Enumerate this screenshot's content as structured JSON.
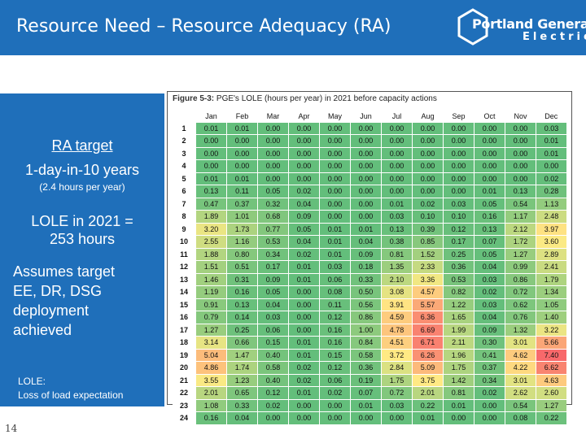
{
  "header": {
    "title": "Resource Need – Resource Adequacy (RA)"
  },
  "logo": {
    "line1": "Portland General",
    "line2": "Electric"
  },
  "left_panel": {
    "ra_target": "RA target",
    "ra_years": "1-day-in-10 years",
    "ra_hours": "(2.4 hours per year)",
    "lole_line1": "LOLE in 2021 =",
    "lole_line2": "253 hours",
    "assumes": [
      "Assumes target",
      "EE, DR, DSG",
      "deployment",
      "achieved"
    ],
    "lole_def_1": "LOLE:",
    "lole_def_2": "Loss of load expectation"
  },
  "page_number": "14",
  "figure": {
    "caption_label": "Figure 5-3:",
    "caption_text": "PGE's LOLE (hours per year) in 2021 before capacity actions"
  },
  "chart_data": {
    "type": "heatmap",
    "title": "PGE's LOLE (hours per year) in 2021 before capacity actions",
    "x": [
      "Jan",
      "Feb",
      "Mar",
      "Apr",
      "May",
      "Jun",
      "Jul",
      "Aug",
      "Sep",
      "Oct",
      "Nov",
      "Dec"
    ],
    "y": [
      "1",
      "2",
      "3",
      "4",
      "5",
      "6",
      "7",
      "8",
      "9",
      "10",
      "11",
      "12",
      "13",
      "14",
      "15",
      "16",
      "17",
      "18",
      "19",
      "20",
      "21",
      "22",
      "23",
      "24"
    ],
    "values": [
      [
        "0.01",
        "0.01",
        "0.00",
        "0.00",
        "0.00",
        "0.00",
        "0.00",
        "0.00",
        "0.00",
        "0.00",
        "0.00",
        "0.03"
      ],
      [
        "0.00",
        "0.00",
        "0.00",
        "0.00",
        "0.00",
        "0.00",
        "0.00",
        "0.00",
        "0.00",
        "0.00",
        "0.00",
        "0.01"
      ],
      [
        "0.00",
        "0.00",
        "0.00",
        "0.00",
        "0.00",
        "0.00",
        "0.00",
        "0.00",
        "0.00",
        "0.00",
        "0.00",
        "0.01"
      ],
      [
        "0.00",
        "0.00",
        "0.00",
        "0.00",
        "0.00",
        "0.00",
        "0.00",
        "0.00",
        "0.00",
        "0.00",
        "0.00",
        "0.00"
      ],
      [
        "0.01",
        "0.01",
        "0.00",
        "0.00",
        "0.00",
        "0.00",
        "0.00",
        "0.00",
        "0.00",
        "0.00",
        "0.00",
        "0.02"
      ],
      [
        "0.13",
        "0.11",
        "0.05",
        "0.02",
        "0.00",
        "0.00",
        "0.00",
        "0.00",
        "0.00",
        "0.01",
        "0.13",
        "0.28"
      ],
      [
        "0.47",
        "0.37",
        "0.32",
        "0.04",
        "0.00",
        "0.00",
        "0.01",
        "0.02",
        "0.03",
        "0.05",
        "0.54",
        "1.13"
      ],
      [
        "1.89",
        "1.01",
        "0.68",
        "0.09",
        "0.00",
        "0.00",
        "0.03",
        "0.10",
        "0.10",
        "0.16",
        "1.17",
        "2.48"
      ],
      [
        "3.20",
        "1.73",
        "0.77",
        "0.05",
        "0.01",
        "0.01",
        "0.13",
        "0.39",
        "0.12",
        "0.13",
        "2.12",
        "3.97"
      ],
      [
        "2.55",
        "1.16",
        "0.53",
        "0.04",
        "0.01",
        "0.04",
        "0.38",
        "0.85",
        "0.17",
        "0.07",
        "1.72",
        "3.60"
      ],
      [
        "1.88",
        "0.80",
        "0.34",
        "0.02",
        "0.01",
        "0.09",
        "0.81",
        "1.52",
        "0.25",
        "0.05",
        "1.27",
        "2.89"
      ],
      [
        "1.51",
        "0.51",
        "0.17",
        "0.01",
        "0.03",
        "0.18",
        "1.35",
        "2.33",
        "0.36",
        "0.04",
        "0.99",
        "2.41"
      ],
      [
        "1.46",
        "0.31",
        "0.09",
        "0.01",
        "0.06",
        "0.33",
        "2.10",
        "3.36",
        "0.53",
        "0.03",
        "0.86",
        "1.79"
      ],
      [
        "1.19",
        "0.16",
        "0.05",
        "0.00",
        "0.08",
        "0.50",
        "3.08",
        "4.57",
        "0.82",
        "0.02",
        "0.72",
        "1.34"
      ],
      [
        "0.91",
        "0.13",
        "0.04",
        "0.00",
        "0.11",
        "0.56",
        "3.91",
        "5.57",
        "1.22",
        "0.03",
        "0.62",
        "1.05"
      ],
      [
        "0.79",
        "0.14",
        "0.03",
        "0.00",
        "0.12",
        "0.86",
        "4.59",
        "6.36",
        "1.65",
        "0.04",
        "0.76",
        "1.40"
      ],
      [
        "1.27",
        "0.25",
        "0.06",
        "0.00",
        "0.16",
        "1.00",
        "4.78",
        "6.69",
        "1.99",
        "0.09",
        "1.32",
        "3.22"
      ],
      [
        "3.14",
        "0.66",
        "0.15",
        "0.01",
        "0.16",
        "0.84",
        "4.51",
        "6.71",
        "2.11",
        "0.30",
        "3.01",
        "5.66"
      ],
      [
        "5.04",
        "1.47",
        "0.40",
        "0.01",
        "0.15",
        "0.58",
        "3.72",
        "6.26",
        "1.96",
        "0.41",
        "4.62",
        "7.40"
      ],
      [
        "4.86",
        "1.74",
        "0.58",
        "0.02",
        "0.12",
        "0.36",
        "2.84",
        "5.09",
        "1.75",
        "0.37",
        "4.22",
        "6.62"
      ],
      [
        "3.55",
        "1.23",
        "0.40",
        "0.02",
        "0.06",
        "0.19",
        "1.75",
        "3.75",
        "1.42",
        "0.34",
        "3.01",
        "4.63"
      ],
      [
        "2.01",
        "0.65",
        "0.12",
        "0.01",
        "0.02",
        "0.07",
        "0.72",
        "2.01",
        "0.81",
        "0.02",
        "2.62",
        "2.60"
      ],
      [
        "1.08",
        "0.33",
        "0.02",
        "0.00",
        "0.00",
        "0.01",
        "0.03",
        "0.22",
        "0.01",
        "0.00",
        "0.54",
        "1.27"
      ],
      [
        "0.16",
        "0.04",
        "0.00",
        "0.00",
        "0.00",
        "0.00",
        "0.00",
        "0.01",
        "0.00",
        "0.00",
        "0.08",
        "0.22"
      ]
    ],
    "color_scale": {
      "low": "#63be7b",
      "mid": "#ffeb84",
      "high": "#f8696b",
      "max": 7.4
    }
  }
}
